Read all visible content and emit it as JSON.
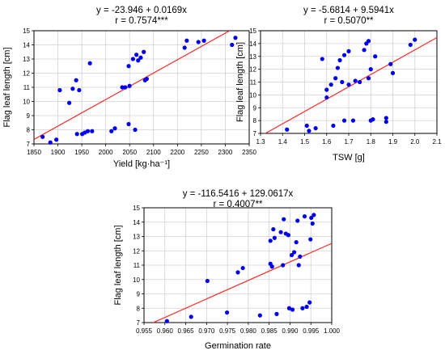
{
  "chart_data": [
    {
      "type": "scatter",
      "equation": "y = -23.946 + 0.0169x",
      "r_label": "r = 0.7574***",
      "xlabel": "Yield [kg·ha⁻¹]",
      "ylabel": "Flag leaf length [cm]",
      "xlim": [
        1850,
        2350
      ],
      "ylim": [
        7,
        15
      ],
      "xticks": [
        "1850",
        "1900",
        "1950",
        "2000",
        "2050",
        "2100",
        "2200",
        "2250",
        "2300",
        "2350"
      ],
      "yticks": [
        "7",
        "8",
        "9",
        "10",
        "11",
        "12",
        "13",
        "14",
        "15"
      ],
      "grid": true,
      "fit_line": {
        "intercept": -23.946,
        "slope": 0.0169,
        "color": "#ff2a2a"
      },
      "point_color": "#0000ee",
      "points": [
        {
          "x": 1870,
          "y": 7.5
        },
        {
          "x": 1888,
          "y": 7.1
        },
        {
          "x": 1902,
          "y": 7.3
        },
        {
          "x": 1910,
          "y": 10.8
        },
        {
          "x": 1932,
          "y": 9.9
        },
        {
          "x": 1940,
          "y": 10.9
        },
        {
          "x": 1948,
          "y": 11.5
        },
        {
          "x": 1955,
          "y": 10.8
        },
        {
          "x": 1950,
          "y": 7.7
        },
        {
          "x": 1962,
          "y": 7.7
        },
        {
          "x": 1975,
          "y": 7.9
        },
        {
          "x": 1968,
          "y": 7.8
        },
        {
          "x": 1985,
          "y": 7.9
        },
        {
          "x": 1980,
          "y": 12.7
        },
        {
          "x": 2030,
          "y": 7.9
        },
        {
          "x": 2038,
          "y": 8.1
        },
        {
          "x": 2055,
          "y": 11.0
        },
        {
          "x": 2062,
          "y": 11.0
        },
        {
          "x": 2072,
          "y": 11.1
        },
        {
          "x": 2070,
          "y": 12.5
        },
        {
          "x": 2080,
          "y": 13.0
        },
        {
          "x": 2088,
          "y": 13.3
        },
        {
          "x": 2092,
          "y": 12.9
        },
        {
          "x": 2098,
          "y": 13.1
        },
        {
          "x": 2105,
          "y": 13.5
        },
        {
          "x": 2108,
          "y": 11.5
        },
        {
          "x": 2112,
          "y": 11.6
        },
        {
          "x": 2070,
          "y": 8.4
        },
        {
          "x": 2085,
          "y": 8.0
        },
        {
          "x": 2200,
          "y": 13.8
        },
        {
          "x": 2205,
          "y": 14.3
        },
        {
          "x": 2232,
          "y": 14.2
        },
        {
          "x": 2245,
          "y": 14.3
        },
        {
          "x": 2310,
          "y": 14.0
        },
        {
          "x": 2318,
          "y": 14.5
        }
      ]
    },
    {
      "type": "scatter",
      "equation": "y = -5.6814 + 9.5941x",
      "r_label": "r = 0.5070**",
      "xlabel": "TSW [g]",
      "ylabel": "Flag leaf length [cm]",
      "xlim": [
        1.3,
        2.1
      ],
      "ylim": [
        7,
        15
      ],
      "xticks": [
        "1.3",
        "1.4",
        "1.5",
        "1.6",
        "1.7",
        "1.8",
        "1.9",
        "2.0",
        "2.1"
      ],
      "yticks": [
        "7",
        "8",
        "9",
        "10",
        "11",
        "12",
        "13",
        "14",
        "15"
      ],
      "grid": true,
      "fit_line": {
        "intercept": -5.6814,
        "slope": 9.5941,
        "color": "#ff2a2a"
      },
      "point_color": "#0000ee",
      "points": [
        {
          "x": 1.42,
          "y": 7.3
        },
        {
          "x": 1.51,
          "y": 7.6
        },
        {
          "x": 1.52,
          "y": 7.2
        },
        {
          "x": 1.55,
          "y": 7.4
        },
        {
          "x": 1.58,
          "y": 12.8
        },
        {
          "x": 1.6,
          "y": 10.4
        },
        {
          "x": 1.6,
          "y": 9.8
        },
        {
          "x": 1.62,
          "y": 10.8
        },
        {
          "x": 1.63,
          "y": 7.6
        },
        {
          "x": 1.64,
          "y": 11.3
        },
        {
          "x": 1.65,
          "y": 12.1
        },
        {
          "x": 1.66,
          "y": 12.7
        },
        {
          "x": 1.67,
          "y": 11.0
        },
        {
          "x": 1.68,
          "y": 13.1
        },
        {
          "x": 1.68,
          "y": 8.0
        },
        {
          "x": 1.7,
          "y": 10.8
        },
        {
          "x": 1.7,
          "y": 13.4
        },
        {
          "x": 1.72,
          "y": 8.0
        },
        {
          "x": 1.73,
          "y": 11.1
        },
        {
          "x": 1.75,
          "y": 11.0
        },
        {
          "x": 1.77,
          "y": 13.5
        },
        {
          "x": 1.78,
          "y": 14.0
        },
        {
          "x": 1.79,
          "y": 14.2
        },
        {
          "x": 1.8,
          "y": 12.0
        },
        {
          "x": 1.79,
          "y": 11.3
        },
        {
          "x": 1.8,
          "y": 8.0
        },
        {
          "x": 1.81,
          "y": 8.1
        },
        {
          "x": 1.82,
          "y": 13.0
        },
        {
          "x": 1.87,
          "y": 8.2
        },
        {
          "x": 1.87,
          "y": 7.9
        },
        {
          "x": 1.89,
          "y": 12.4
        },
        {
          "x": 1.9,
          "y": 11.7
        },
        {
          "x": 1.98,
          "y": 13.9
        },
        {
          "x": 2.0,
          "y": 14.3
        }
      ]
    },
    {
      "type": "scatter",
      "equation": "y = -116.5416 + 129.0617x",
      "r_label": "r = 0.4007**",
      "xlabel": "Germination rate",
      "ylabel": "Flag leaf length [cm]",
      "xlim": [
        0.955,
        1.0
      ],
      "ylim": [
        7,
        15
      ],
      "xticks": [
        "0.955",
        "0.960",
        "0.965",
        "0.970",
        "0.975",
        "0.980",
        "0.985",
        "0.990",
        "0.995",
        "1.000"
      ],
      "yticks": [
        "7",
        "8",
        "9",
        "10",
        "11",
        "12",
        "13",
        "14",
        "15"
      ],
      "grid": true,
      "fit_line": {
        "intercept": -116.5416,
        "slope": 129.0617,
        "color": "#ff2a2a"
      },
      "point_color": "#0000ee",
      "points": [
        {
          "x": 0.9605,
          "y": 7.1
        },
        {
          "x": 0.9663,
          "y": 7.4
        },
        {
          "x": 0.9702,
          "y": 9.9
        },
        {
          "x": 0.9749,
          "y": 7.7
        },
        {
          "x": 0.9775,
          "y": 10.5
        },
        {
          "x": 0.9787,
          "y": 10.8
        },
        {
          "x": 0.9828,
          "y": 7.5
        },
        {
          "x": 0.9853,
          "y": 11.1
        },
        {
          "x": 0.9853,
          "y": 12.7
        },
        {
          "x": 0.9857,
          "y": 10.9
        },
        {
          "x": 0.986,
          "y": 13.5
        },
        {
          "x": 0.9863,
          "y": 12.9
        },
        {
          "x": 0.9868,
          "y": 7.6
        },
        {
          "x": 0.9878,
          "y": 13.3
        },
        {
          "x": 0.9885,
          "y": 14.2
        },
        {
          "x": 0.9883,
          "y": 11.0
        },
        {
          "x": 0.989,
          "y": 13.2
        },
        {
          "x": 0.9896,
          "y": 13.1
        },
        {
          "x": 0.9898,
          "y": 8.0
        },
        {
          "x": 0.9904,
          "y": 11.7
        },
        {
          "x": 0.991,
          "y": 11.9
        },
        {
          "x": 0.9906,
          "y": 7.9
        },
        {
          "x": 0.9915,
          "y": 12.6
        },
        {
          "x": 0.9918,
          "y": 14.1
        },
        {
          "x": 0.9921,
          "y": 11.0
        },
        {
          "x": 0.9924,
          "y": 11.6
        },
        {
          "x": 0.993,
          "y": 8.0
        },
        {
          "x": 0.9935,
          "y": 14.4
        },
        {
          "x": 0.994,
          "y": 8.1
        },
        {
          "x": 0.9947,
          "y": 8.4
        },
        {
          "x": 0.9951,
          "y": 14.3
        },
        {
          "x": 0.9954,
          "y": 13.9
        },
        {
          "x": 0.9957,
          "y": 14.5
        },
        {
          "x": 0.9949,
          "y": 12.8
        }
      ]
    }
  ]
}
